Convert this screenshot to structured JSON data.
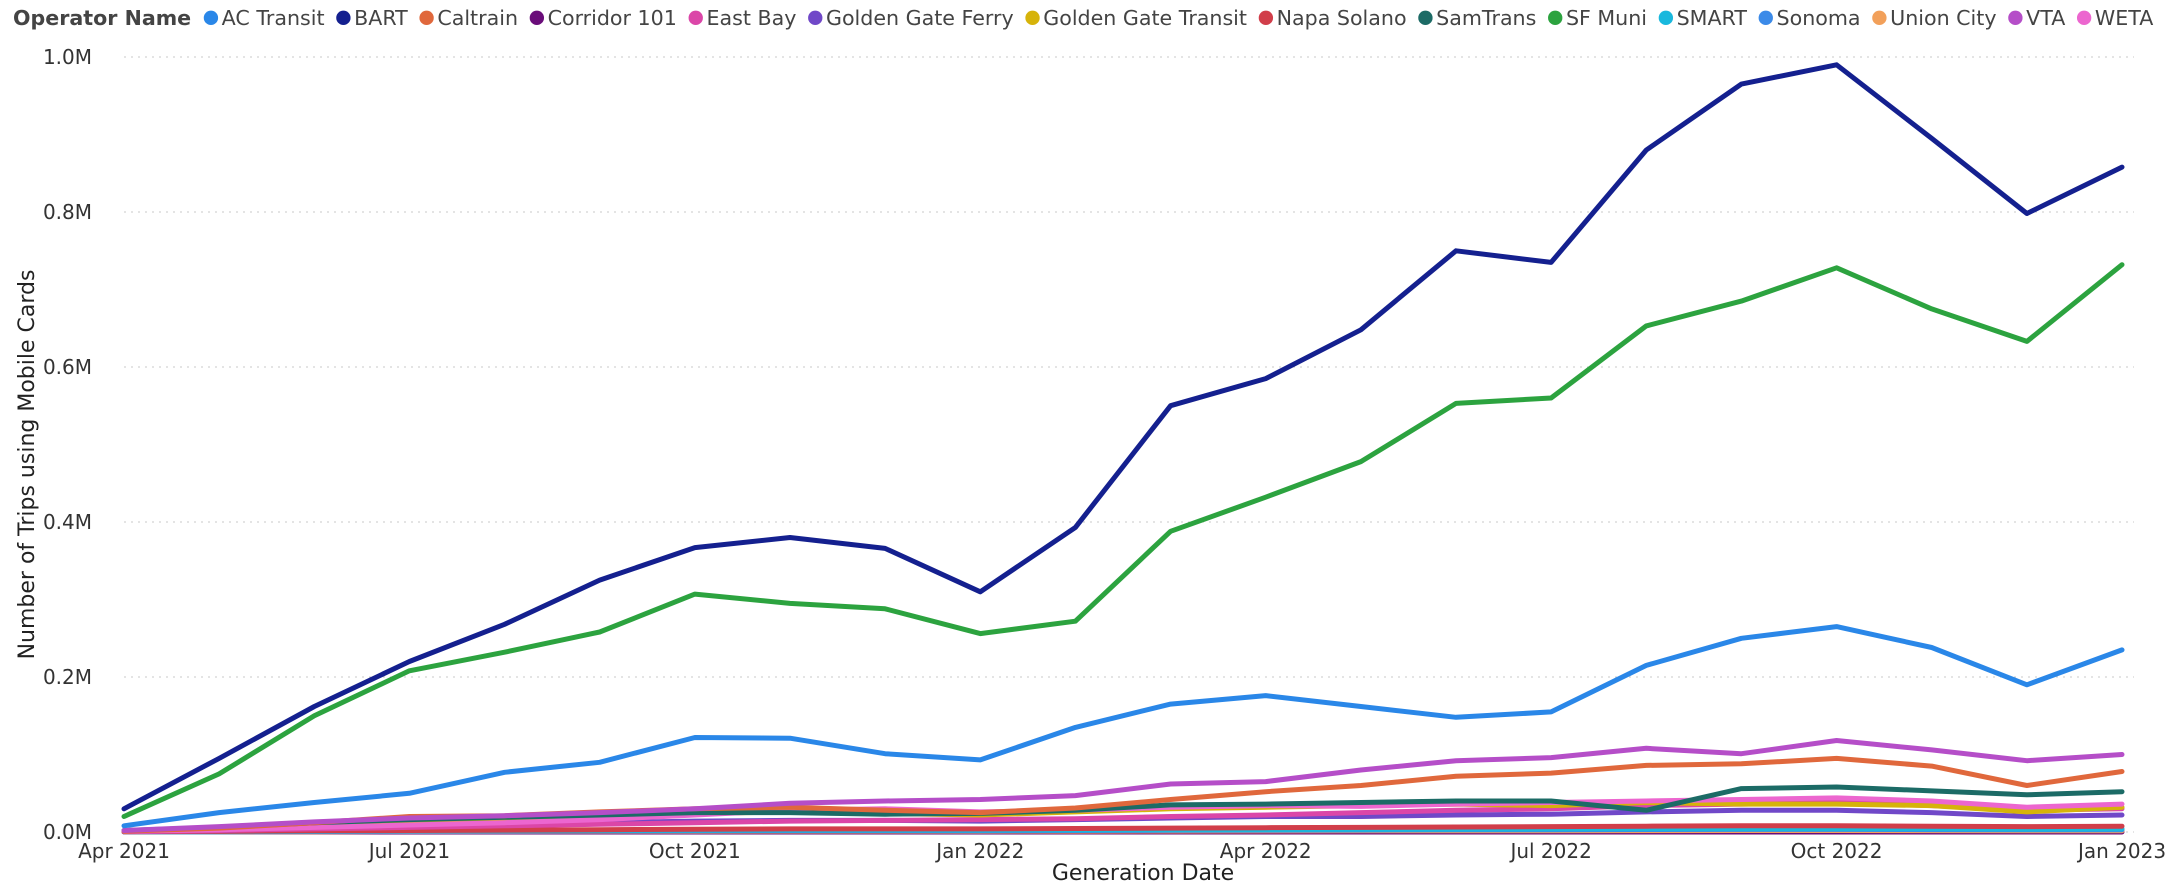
{
  "legend": {
    "title": "Operator Name"
  },
  "chart_data": {
    "type": "line",
    "xlabel": "Generation Date",
    "ylabel": "Number of Trips using Mobile Cards",
    "x": [
      "Apr 2021",
      "May 2021",
      "Jun 2021",
      "Jul 2021",
      "Aug 2021",
      "Sep 2021",
      "Oct 2021",
      "Nov 2021",
      "Dec 2021",
      "Jan 2022",
      "Feb 2022",
      "Mar 2022",
      "Apr 2022",
      "May 2022",
      "Jun 2022",
      "Jul 2022",
      "Aug 2022",
      "Sep 2022",
      "Oct 2022",
      "Nov 2022",
      "Dec 2022",
      "Jan 2023"
    ],
    "x_tick_labels": [
      "Apr 2021",
      "Jul 2021",
      "Oct 2021",
      "Jan 2022",
      "Apr 2022",
      "Jul 2022",
      "Oct 2022",
      "Jan 2023"
    ],
    "x_tick_indices": [
      0,
      3,
      6,
      9,
      12,
      15,
      18,
      21
    ],
    "y_ticks": [
      0,
      200000,
      400000,
      600000,
      800000,
      1000000
    ],
    "y_tick_labels": [
      "0.0M",
      "0.2M",
      "0.4M",
      "0.6M",
      "0.8M",
      "1.0M"
    ],
    "ylim": [
      0,
      1000000
    ],
    "grid": true,
    "legend_position": "top-left",
    "series": [
      {
        "name": "AC Transit",
        "color": "#2a87e8",
        "values": [
          8000,
          25000,
          38000,
          50000,
          77000,
          90000,
          122000,
          121000,
          101000,
          93000,
          135000,
          165000,
          176000,
          162000,
          148000,
          155000,
          215000,
          250000,
          265000,
          238000,
          190000,
          235000
        ]
      },
      {
        "name": "BART",
        "color": "#14208f",
        "values": [
          30000,
          95000,
          162000,
          220000,
          268000,
          325000,
          367000,
          380000,
          366000,
          310000,
          393000,
          550000,
          585000,
          648000,
          750000,
          735000,
          880000,
          965000,
          990000,
          895000,
          798000,
          858000
        ]
      },
      {
        "name": "Caltrain",
        "color": "#e0683c",
        "values": [
          1000,
          5000,
          12000,
          20000,
          21000,
          26000,
          30000,
          32000,
          28000,
          25000,
          31000,
          42000,
          52000,
          60000,
          72000,
          76000,
          86000,
          88000,
          95000,
          85000,
          60000,
          78000
        ]
      },
      {
        "name": "Corridor 101",
        "color": "#6a0d7a",
        "values": [
          0,
          0,
          0,
          0,
          0,
          0,
          0,
          0,
          0,
          0,
          0,
          0,
          0,
          0,
          0,
          0,
          0,
          0,
          0,
          0,
          0,
          0
        ]
      },
      {
        "name": "East Bay",
        "color": "#db46a8",
        "values": [
          500,
          2000,
          4000,
          6000,
          8000,
          10000,
          12000,
          14000,
          15000,
          16000,
          17000,
          20000,
          22000,
          25000,
          28000,
          30000,
          34000,
          36000,
          38000,
          34000,
          28000,
          30000
        ]
      },
      {
        "name": "Golden Gate Ferry",
        "color": "#7048c8",
        "values": [
          500,
          2000,
          5000,
          8000,
          10000,
          12000,
          14000,
          15000,
          15000,
          14000,
          16000,
          18000,
          20000,
          20000,
          22000,
          23000,
          26000,
          28000,
          28000,
          25000,
          20000,
          22000
        ]
      },
      {
        "name": "Golden Gate Transit",
        "color": "#d6b30a",
        "values": [
          1000,
          4000,
          8000,
          12000,
          16000,
          20000,
          24000,
          26000,
          24000,
          22000,
          26000,
          30000,
          32000,
          34000,
          36000,
          34000,
          38000,
          36000,
          36000,
          34000,
          26000,
          32000
        ]
      },
      {
        "name": "Napa Solano",
        "color": "#d13e4a",
        "values": [
          300,
          800,
          1500,
          2000,
          2500,
          3000,
          3500,
          4000,
          4000,
          4000,
          4500,
          5000,
          5500,
          6000,
          6500,
          7000,
          7500,
          8000,
          8000,
          7500,
          7000,
          7500
        ]
      },
      {
        "name": "SamTrans",
        "color": "#1c6b66",
        "values": [
          2000,
          6000,
          12000,
          16000,
          19000,
          22000,
          25000,
          25000,
          23000,
          24000,
          28000,
          35000,
          36000,
          38000,
          40000,
          40000,
          28000,
          56000,
          58000,
          53000,
          48000,
          52000
        ]
      },
      {
        "name": "SF Muni",
        "color": "#2ca33f",
        "values": [
          20000,
          75000,
          150000,
          208000,
          232000,
          258000,
          307000,
          295000,
          288000,
          256000,
          272000,
          388000,
          432000,
          478000,
          553000,
          560000,
          653000,
          685000,
          728000,
          675000,
          633000,
          732000
        ]
      },
      {
        "name": "SMART",
        "color": "#19b8dd",
        "values": [
          200,
          500,
          1000,
          1500,
          1800,
          2000,
          2200,
          2500,
          2500,
          2400,
          2600,
          3000,
          3200,
          3500,
          3800,
          4000,
          4200,
          4300,
          4300,
          4100,
          3800,
          4000
        ]
      },
      {
        "name": "Sonoma",
        "color": "#3b8ae8",
        "values": [
          100,
          300,
          600,
          900,
          1200,
          1400,
          1600,
          1800,
          1800,
          1700,
          1900,
          2200,
          2400,
          2600,
          2800,
          3000,
          3200,
          3300,
          3300,
          3100,
          2800,
          3000
        ]
      },
      {
        "name": "Union City",
        "color": "#f2a05a",
        "values": [
          100,
          200,
          400,
          600,
          800,
          900,
          1000,
          1100,
          1100,
          1000,
          1100,
          1300,
          1400,
          1500,
          1600,
          1700,
          1800,
          1900,
          1900,
          1800,
          1600,
          1700
        ]
      },
      {
        "name": "VTA",
        "color": "#b54ec8",
        "values": [
          2000,
          7000,
          13000,
          18000,
          21000,
          25000,
          30000,
          37000,
          40000,
          42000,
          47000,
          62000,
          65000,
          80000,
          92000,
          96000,
          108000,
          101000,
          118000,
          106000,
          92000,
          100000
        ]
      },
      {
        "name": "WETA",
        "color": "#ec66cf",
        "values": [
          1000,
          3000,
          6000,
          9000,
          12000,
          16000,
          22000,
          28000,
          30000,
          26000,
          28000,
          32000,
          34000,
          33000,
          36000,
          38000,
          40000,
          42000,
          44000,
          40000,
          32000,
          36000
        ]
      }
    ]
  }
}
